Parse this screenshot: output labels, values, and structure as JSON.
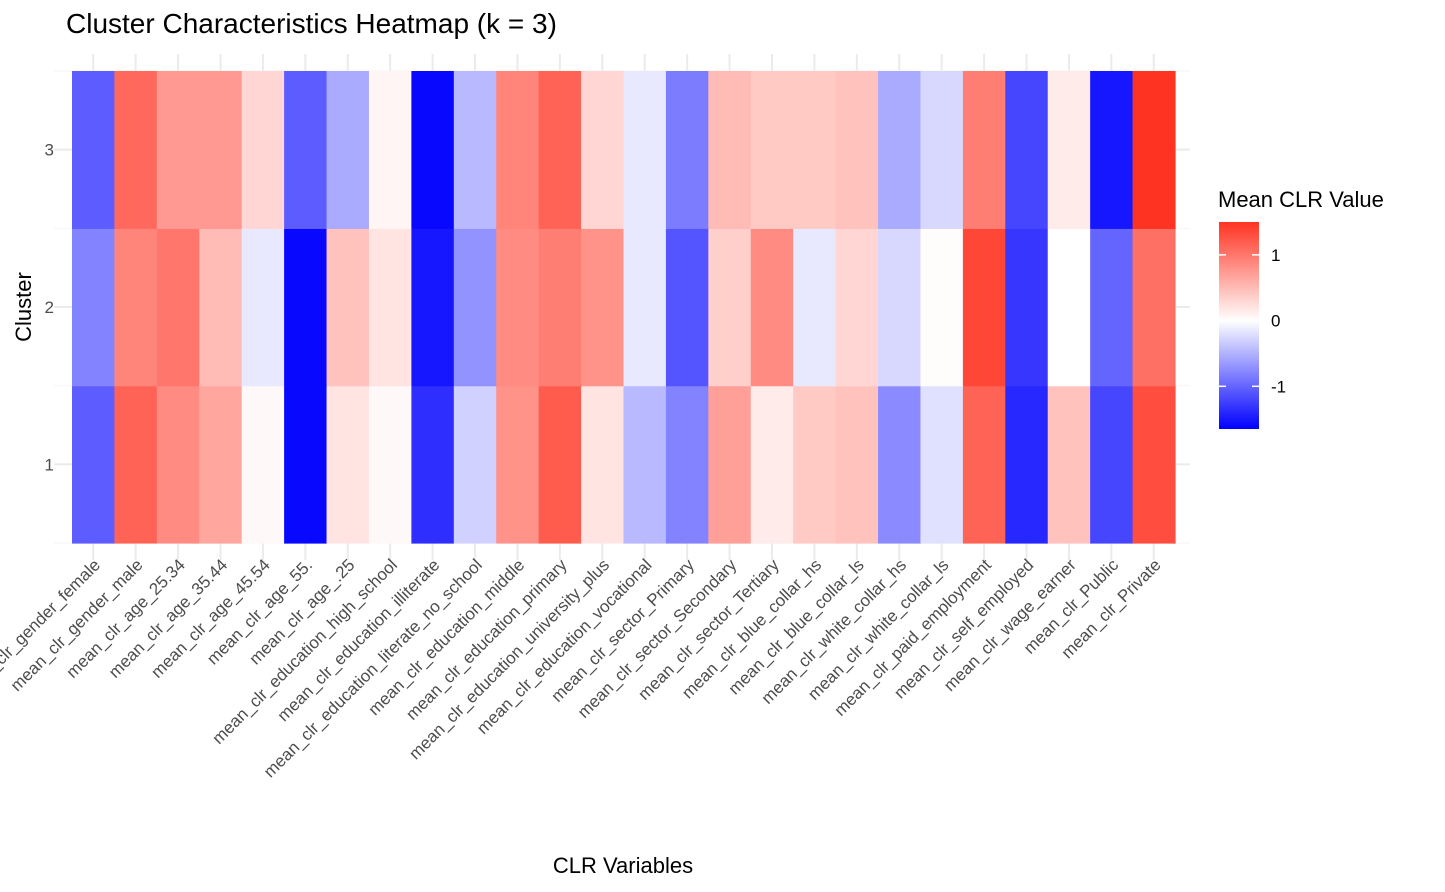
{
  "chart_data": {
    "type": "heatmap",
    "title": "Cluster Characteristics Heatmap (k = 3)",
    "xlabel": "CLR Variables",
    "ylabel": "Cluster",
    "x_categories": [
      "mean_clr_gender_female",
      "mean_clr_gender_male",
      "mean_clr_age_25.34",
      "mean_clr_age_35.44",
      "mean_clr_age_45.54",
      "mean_clr_age_55.",
      "mean_clr_age_.25",
      "mean_clr_education_high_school",
      "mean_clr_education_illiterate",
      "mean_clr_education_literate_no_school",
      "mean_clr_education_middle",
      "mean_clr_education_primary",
      "mean_clr_education_university_plus",
      "mean_clr_education_vocational",
      "mean_clr_sector_Primary",
      "mean_clr_sector_Secondary",
      "mean_clr_sector_Tertiary",
      "mean_clr_blue_collar_hs",
      "mean_clr_blue_collar_ls",
      "mean_clr_white_collar_hs",
      "mean_clr_white_collar_ls",
      "mean_clr_paid_employment",
      "mean_clr_self_employed",
      "mean_clr_wage_earner",
      "mean_clr_Public",
      "mean_clr_Private"
    ],
    "y_categories": [
      "1",
      "2",
      "3"
    ],
    "values": {
      "1": [
        -1.05,
        1.15,
        0.85,
        0.65,
        0.05,
        -1.6,
        0.2,
        0.05,
        -1.35,
        -0.3,
        0.8,
        1.2,
        0.2,
        -0.45,
        -0.8,
        0.7,
        0.15,
        0.4,
        0.45,
        -0.75,
        -0.2,
        1.15,
        -1.4,
        0.45,
        -1.2,
        1.3
      ],
      "2": [
        -0.8,
        0.9,
        1.0,
        0.5,
        -0.15,
        -1.6,
        0.45,
        0.2,
        -1.5,
        -0.7,
        0.85,
        0.95,
        0.8,
        -0.15,
        -1.1,
        0.35,
        0.85,
        -0.15,
        0.3,
        -0.25,
        0.02,
        1.35,
        -1.3,
        0.0,
        -1.0,
        1.05
      ],
      "3": [
        -1.05,
        1.1,
        0.75,
        0.75,
        0.3,
        -1.05,
        -0.55,
        0.07,
        -1.6,
        -0.45,
        0.9,
        1.15,
        0.3,
        -0.15,
        -0.85,
        0.5,
        0.4,
        0.4,
        0.45,
        -0.55,
        -0.25,
        0.95,
        -1.2,
        0.15,
        -1.5,
        1.5
      ]
    },
    "scale": {
      "title": "Mean CLR Value",
      "min": -1.65,
      "max": 1.5,
      "ticks": [
        1,
        0,
        -1
      ],
      "tick_labels": [
        "1",
        "0",
        "-1"
      ],
      "colors": {
        "low": "#0000ff",
        "mid": "#ffffff",
        "high": "#ff3322"
      }
    },
    "grid": true,
    "legend_position": "right"
  }
}
